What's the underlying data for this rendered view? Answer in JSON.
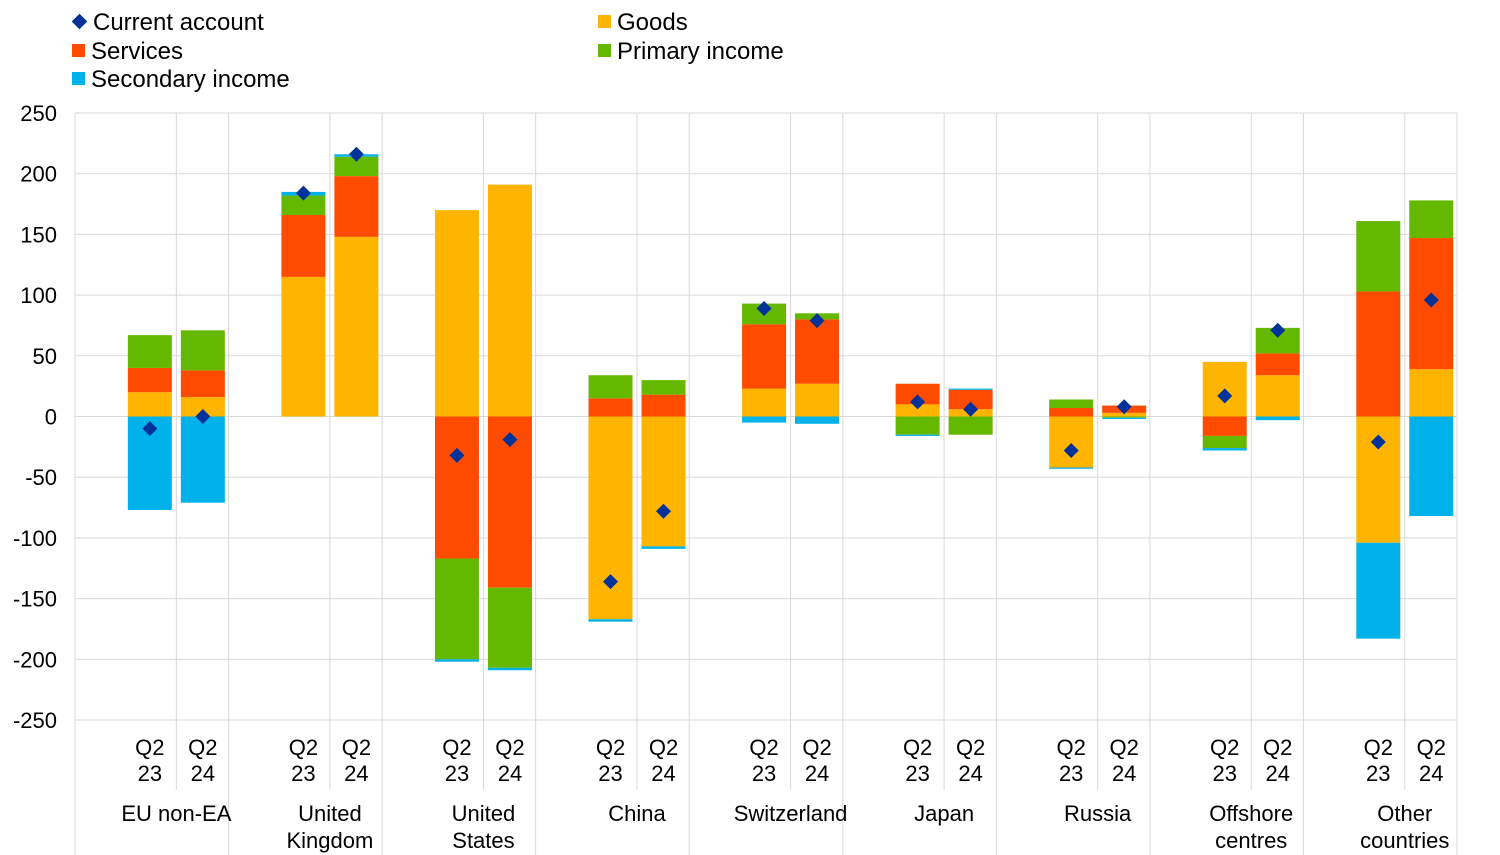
{
  "chart_data": {
    "type": "bar",
    "subtype": "stacked-bar-with-markers",
    "groups": [
      "EU non-EA",
      "United Kingdom",
      "United States",
      "China",
      "Switzerland",
      "Japan",
      "Russia",
      "Offshore centres",
      "Other countries"
    ],
    "group_labels": [
      [
        "EU non-EA"
      ],
      [
        "United",
        "Kingdom"
      ],
      [
        "United",
        "States"
      ],
      [
        "China"
      ],
      [
        "Switzerland"
      ],
      [
        "Japan"
      ],
      [
        "Russia"
      ],
      [
        "Offshore",
        "centres"
      ],
      [
        "Other",
        "countries"
      ]
    ],
    "bar_labels": [
      [
        "Q2",
        "23"
      ],
      [
        "Q2",
        "24"
      ]
    ],
    "ylim": [
      -250,
      250
    ],
    "yticks": [
      250,
      200,
      150,
      100,
      50,
      0,
      -50,
      -100,
      -150,
      -200,
      -250
    ],
    "grid": true,
    "legend_position": "top-left",
    "series": [
      {
        "name": "Goods",
        "color": "#FFB400",
        "values": [
          20,
          16,
          115,
          148,
          170,
          191,
          -167,
          -107,
          23,
          27,
          10,
          6,
          -42,
          3,
          45,
          34,
          -104,
          39
        ]
      },
      {
        "name": "Services",
        "color": "#FF4B00",
        "values": [
          20,
          22,
          51,
          50,
          -117,
          -141,
          15,
          18,
          53,
          53,
          17,
          16,
          7,
          6,
          -16,
          18,
          103,
          108
        ]
      },
      {
        "name": "Primary income",
        "color": "#65B800",
        "values": [
          27,
          33,
          16,
          16,
          -83,
          -66,
          19,
          12,
          17,
          5,
          -15,
          -15,
          7,
          -1,
          -10,
          21,
          58,
          31
        ]
      },
      {
        "name": "Secondary income",
        "color": "#00B1EA",
        "values": [
          -77,
          -71,
          3,
          2,
          -2,
          -2,
          -2,
          -2,
          -5,
          -6,
          -1,
          1,
          -1,
          -1,
          -2,
          -3,
          -79,
          -82
        ]
      }
    ],
    "marker_series": {
      "name": "Current account",
      "color": "#003299",
      "values": [
        -10,
        0,
        184,
        216,
        -32,
        -19,
        -136,
        -78,
        89,
        79,
        12,
        6,
        -28,
        8,
        17,
        71,
        -21,
        96
      ]
    }
  }
}
